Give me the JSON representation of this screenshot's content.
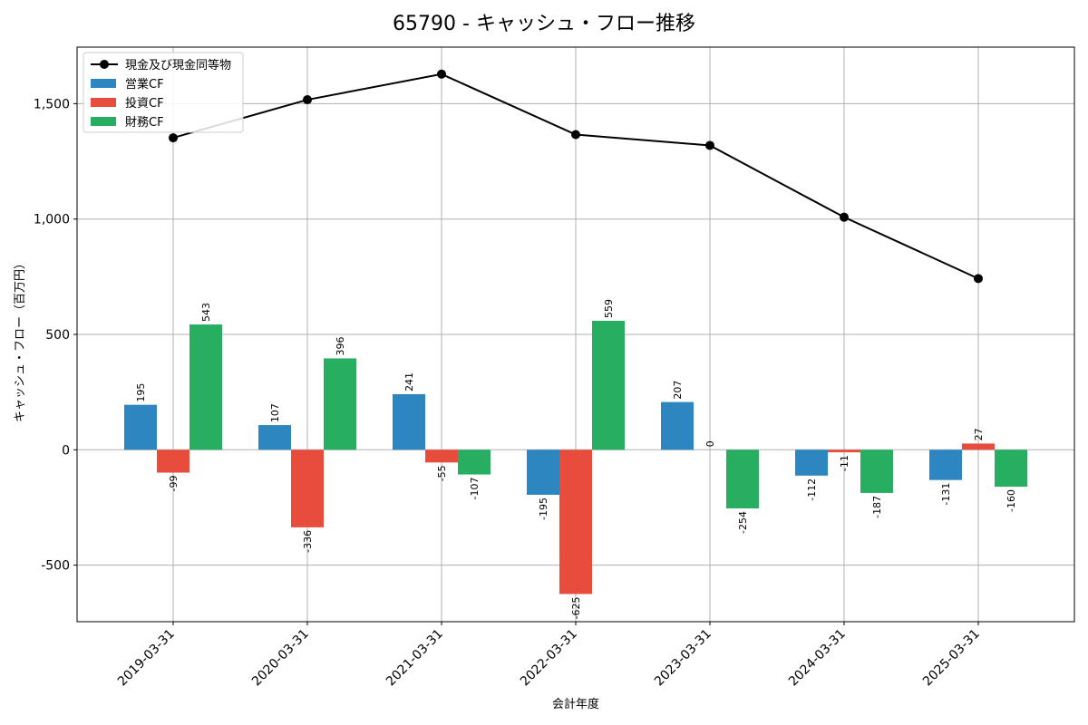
{
  "chart_data": {
    "type": "bar",
    "title": "65790 - キャッシュ・フロー推移",
    "xlabel": "会計年度",
    "ylabel": "キャッシュ・フロー（百万円）",
    "categories": [
      "2019-03-31",
      "2020-03-31",
      "2021-03-31",
      "2022-03-31",
      "2023-03-31",
      "2024-03-31",
      "2025-03-31"
    ],
    "ylim": [
      -745,
      1745
    ],
    "yticks": [
      -500,
      0,
      500,
      1000,
      1500
    ],
    "ytick_labels": [
      "-500",
      "0",
      "500",
      "1,000",
      "1,500"
    ],
    "grid": true,
    "legend_position": "top-left",
    "series": [
      {
        "name": "営業CF",
        "kind": "bar",
        "color": "#2e86c1",
        "values": [
          195,
          107,
          241,
          -195,
          207,
          -112,
          -131
        ]
      },
      {
        "name": "投資CF",
        "kind": "bar",
        "color": "#e74c3c",
        "values": [
          -99,
          -336,
          -55,
          -625,
          0,
          -11,
          27
        ]
      },
      {
        "name": "財務CF",
        "kind": "bar",
        "color": "#27ae60",
        "values": [
          543,
          396,
          -107,
          559,
          -254,
          -187,
          -160
        ]
      },
      {
        "name": "現金及び現金同等物",
        "kind": "line",
        "color": "#000000",
        "values": [
          1352,
          1517,
          1628,
          1366,
          1319,
          1008,
          742
        ]
      }
    ],
    "legend_order": [
      3,
      0,
      1,
      2
    ]
  }
}
